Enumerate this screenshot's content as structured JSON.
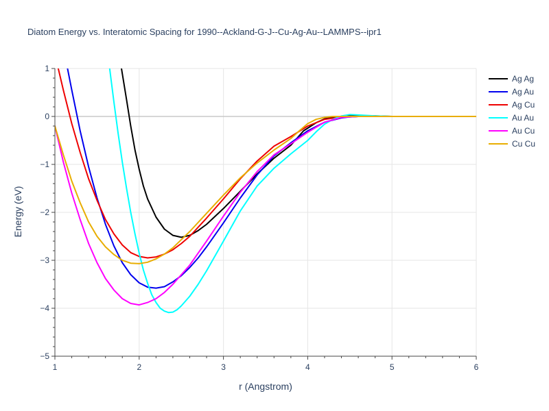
{
  "chart_data": {
    "type": "line",
    "title": "Diatom Energy vs. Interatomic Spacing for 1990--Ackland-G-J--Cu-Ag-Au--LAMMPS--ipr1",
    "xlabel": "r (Angstrom)",
    "ylabel": "Energy (eV)",
    "xlim": [
      1,
      6
    ],
    "ylim": [
      -5,
      1
    ],
    "xticks": [
      1,
      2,
      3,
      4,
      5,
      6
    ],
    "xtick_labels": [
      "1",
      "2",
      "3",
      "4",
      "5",
      "6"
    ],
    "yticks": [
      1,
      0,
      -1,
      -2,
      -3,
      -4,
      -5
    ],
    "ytick_labels": [
      "1",
      "0",
      "−1",
      "−2",
      "−3",
      "−4",
      "−5"
    ],
    "grid": true,
    "legend_position": "top-right",
    "series": [
      {
        "name": "Ag Ag",
        "color": "#000000",
        "x": [
          1.79,
          1.85,
          1.9,
          1.95,
          2.0,
          2.05,
          2.1,
          2.2,
          2.3,
          2.4,
          2.5,
          2.6,
          2.7,
          2.8,
          3.0,
          3.2,
          3.4,
          3.6,
          3.8,
          3.95,
          4.1,
          4.2,
          4.3,
          4.5,
          4.8,
          5.0,
          6.0
        ],
        "y": [
          1.0,
          0.35,
          -0.2,
          -0.7,
          -1.1,
          -1.45,
          -1.72,
          -2.1,
          -2.35,
          -2.48,
          -2.52,
          -2.48,
          -2.38,
          -2.25,
          -1.92,
          -1.56,
          -1.2,
          -0.87,
          -0.6,
          -0.3,
          -0.13,
          -0.05,
          -0.01,
          0.01,
          0.01,
          0.0,
          0.0
        ]
      },
      {
        "name": "Ag Au",
        "color": "#0000ee",
        "x": [
          1.15,
          1.2,
          1.3,
          1.4,
          1.5,
          1.6,
          1.7,
          1.8,
          1.9,
          2.0,
          2.1,
          2.2,
          2.3,
          2.4,
          2.5,
          2.6,
          2.7,
          2.8,
          3.0,
          3.2,
          3.4,
          3.6,
          3.8,
          4.0,
          4.2,
          4.4,
          4.5,
          4.6,
          5.0,
          6.0
        ],
        "y": [
          1.0,
          0.55,
          -0.3,
          -1.05,
          -1.7,
          -2.25,
          -2.7,
          -3.05,
          -3.3,
          -3.47,
          -3.56,
          -3.58,
          -3.55,
          -3.45,
          -3.32,
          -3.15,
          -2.95,
          -2.72,
          -2.22,
          -1.7,
          -1.22,
          -0.82,
          -0.55,
          -0.3,
          -0.12,
          -0.03,
          -0.01,
          0.0,
          0.0,
          0.0
        ]
      },
      {
        "name": "Ag Cu",
        "color": "#ee0000",
        "x": [
          1.04,
          1.1,
          1.2,
          1.3,
          1.4,
          1.5,
          1.6,
          1.7,
          1.8,
          1.9,
          2.0,
          2.1,
          2.2,
          2.3,
          2.4,
          2.5,
          2.6,
          2.8,
          3.0,
          3.2,
          3.4,
          3.6,
          3.8,
          4.0,
          4.2,
          4.4,
          4.6,
          5.0,
          6.0
        ],
        "y": [
          1.0,
          0.55,
          -0.15,
          -0.75,
          -1.3,
          -1.75,
          -2.15,
          -2.45,
          -2.68,
          -2.84,
          -2.92,
          -2.95,
          -2.93,
          -2.87,
          -2.78,
          -2.65,
          -2.5,
          -2.12,
          -1.72,
          -1.3,
          -0.93,
          -0.62,
          -0.42,
          -0.2,
          -0.06,
          -0.01,
          0.0,
          0.0,
          0.0
        ]
      },
      {
        "name": "Au Au",
        "color": "#00ffff",
        "x": [
          1.65,
          1.7,
          1.75,
          1.8,
          1.85,
          1.9,
          1.95,
          2.0,
          2.05,
          2.1,
          2.15,
          2.2,
          2.25,
          2.3,
          2.35,
          2.4,
          2.45,
          2.5,
          2.6,
          2.7,
          2.8,
          3.0,
          3.2,
          3.4,
          3.6,
          3.8,
          4.0,
          4.1,
          4.2,
          4.3,
          4.4,
          4.5,
          4.6,
          4.8,
          5.0,
          6.0
        ],
        "y": [
          1.0,
          0.3,
          -0.35,
          -0.95,
          -1.5,
          -2.0,
          -2.45,
          -2.85,
          -3.2,
          -3.48,
          -3.72,
          -3.88,
          -4.0,
          -4.06,
          -4.09,
          -4.08,
          -4.03,
          -3.95,
          -3.75,
          -3.5,
          -3.22,
          -2.6,
          -1.97,
          -1.45,
          -1.08,
          -0.78,
          -0.5,
          -0.32,
          -0.16,
          -0.06,
          0.01,
          0.04,
          0.03,
          0.01,
          0.0,
          0.0
        ]
      },
      {
        "name": "Au Cu",
        "color": "#ff00ff",
        "x": [
          1.0,
          1.1,
          1.2,
          1.3,
          1.4,
          1.5,
          1.6,
          1.7,
          1.8,
          1.9,
          2.0,
          2.1,
          2.2,
          2.3,
          2.4,
          2.5,
          2.6,
          2.8,
          3.0,
          3.2,
          3.4,
          3.6,
          3.8,
          4.0,
          4.2,
          4.4,
          4.6,
          5.0,
          6.0
        ],
        "y": [
          -0.2,
          -0.95,
          -1.6,
          -2.15,
          -2.65,
          -3.05,
          -3.38,
          -3.62,
          -3.8,
          -3.9,
          -3.93,
          -3.88,
          -3.8,
          -3.67,
          -3.5,
          -3.3,
          -3.1,
          -2.6,
          -2.08,
          -1.58,
          -1.15,
          -0.8,
          -0.57,
          -0.33,
          -0.12,
          -0.02,
          0.0,
          0.0,
          0.0
        ]
      },
      {
        "name": "Cu Cu",
        "color": "#e8ad00",
        "x": [
          1.0,
          1.1,
          1.2,
          1.3,
          1.4,
          1.5,
          1.6,
          1.7,
          1.8,
          1.9,
          2.0,
          2.1,
          2.2,
          2.3,
          2.4,
          2.6,
          2.8,
          3.0,
          3.2,
          3.4,
          3.6,
          3.8,
          3.9,
          4.0,
          4.1,
          4.2,
          4.3,
          4.5,
          5.0,
          6.0
        ],
        "y": [
          -0.2,
          -0.8,
          -1.35,
          -1.8,
          -2.2,
          -2.5,
          -2.72,
          -2.88,
          -3.0,
          -3.06,
          -3.07,
          -3.04,
          -2.97,
          -2.87,
          -2.74,
          -2.4,
          -2.02,
          -1.64,
          -1.28,
          -0.97,
          -0.7,
          -0.46,
          -0.3,
          -0.15,
          -0.06,
          -0.02,
          0.0,
          0.0,
          0.0,
          0.0
        ]
      }
    ]
  }
}
